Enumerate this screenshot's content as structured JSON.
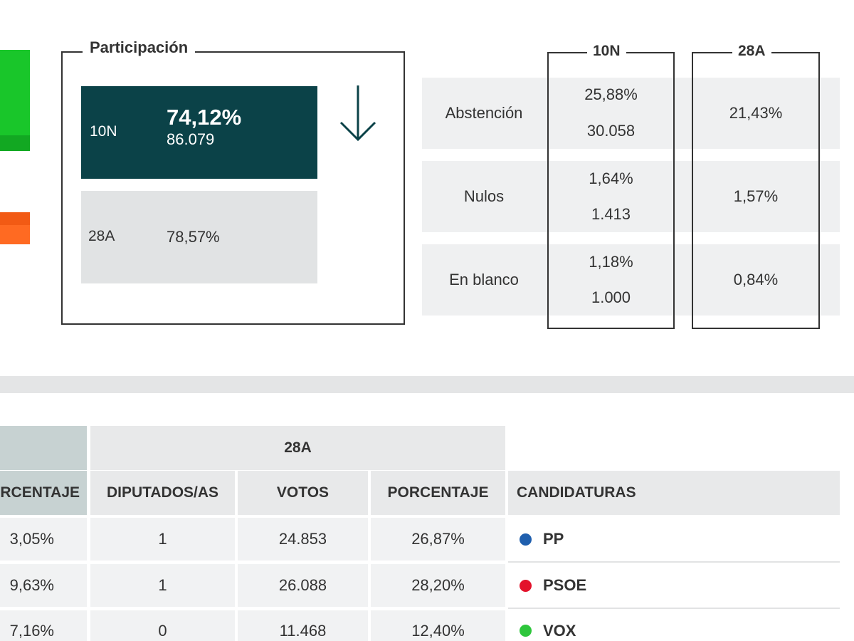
{
  "participation": {
    "title": "Participación",
    "current": {
      "label": "10N",
      "percent": "74,12%",
      "votes": "86.079"
    },
    "previous": {
      "label": "28A",
      "percent": "78,57%"
    }
  },
  "stats": {
    "col_10n": "10N",
    "col_28a": "28A",
    "rows": [
      {
        "label": "Abstención",
        "pct_10n": "25,88%",
        "votes_10n": "30.058",
        "pct_28a": "21,43%"
      },
      {
        "label": "Nulos",
        "pct_10n": "1,64%",
        "votes_10n": "1.413",
        "pct_28a": "1,57%"
      },
      {
        "label": "En blanco",
        "pct_10n": "1,18%",
        "votes_10n": "1.000",
        "pct_28a": "0,84%"
      }
    ]
  },
  "results": {
    "group_28a": "28A",
    "headers": {
      "pct_10n": "RCENTAJE",
      "seats": "DIPUTADOS/AS",
      "votes": "VOTOS",
      "pct": "PORCENTAJE",
      "candidates": "CANDIDATURAS"
    },
    "rows": [
      {
        "pct_10n": "3,05%",
        "seats": "1",
        "votes": "24.853",
        "pct": "26,87%",
        "party": "PP",
        "color": "#1f5fae"
      },
      {
        "pct_10n": "9,63%",
        "seats": "1",
        "votes": "26.088",
        "pct": "28,20%",
        "party": "PSOE",
        "color": "#e3122b"
      },
      {
        "pct_10n": "7,16%",
        "seats": "0",
        "votes": "11.468",
        "pct": "12,40%",
        "party": "VOX",
        "color": "#2ec63c"
      }
    ]
  },
  "colors": {
    "accent": "#0b4248",
    "green_bar": "#19c62a",
    "orange_bar": "#ff6a22"
  }
}
